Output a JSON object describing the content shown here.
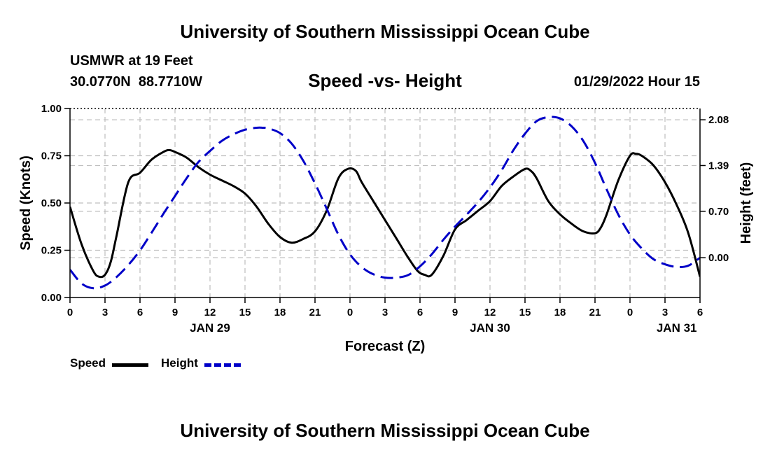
{
  "header": {
    "main_title": "University of Southern Mississippi Ocean Cube",
    "station": "USMWR at 19 Feet",
    "coords": "30.0770N  88.7710W",
    "date_hour": "01/29/2022 Hour 15",
    "footer_title": "University of Southern Mississippi Ocean Cube"
  },
  "chart_data": {
    "type": "line",
    "title": "Speed -vs- Height",
    "xlabel": "Forecast (Z)",
    "ylabel": "Speed (Knots)",
    "y2label": "Height (feet)",
    "x_range_hours": [
      0,
      54
    ],
    "x_ticks": [
      {
        "hour": 0,
        "label": "0"
      },
      {
        "hour": 3,
        "label": "3"
      },
      {
        "hour": 6,
        "label": "6"
      },
      {
        "hour": 9,
        "label": "9"
      },
      {
        "hour": 12,
        "label": "12"
      },
      {
        "hour": 15,
        "label": "15"
      },
      {
        "hour": 18,
        "label": "18"
      },
      {
        "hour": 21,
        "label": "21"
      },
      {
        "hour": 24,
        "label": "0"
      },
      {
        "hour": 27,
        "label": "3"
      },
      {
        "hour": 30,
        "label": "6"
      },
      {
        "hour": 33,
        "label": "9"
      },
      {
        "hour": 36,
        "label": "12"
      },
      {
        "hour": 39,
        "label": "15"
      },
      {
        "hour": 42,
        "label": "18"
      },
      {
        "hour": 45,
        "label": "21"
      },
      {
        "hour": 48,
        "label": "0"
      },
      {
        "hour": 51,
        "label": "3"
      },
      {
        "hour": 54,
        "label": "6"
      }
    ],
    "day_labels": [
      {
        "hour": 12,
        "label": "JAN 29"
      },
      {
        "hour": 36,
        "label": "JAN 30"
      },
      {
        "hour": 52,
        "label": "JAN 31"
      }
    ],
    "y_left": {
      "range": [
        0,
        1.0
      ],
      "ticks": [
        0.0,
        0.25,
        0.5,
        0.75,
        1.0
      ],
      "tick_labels": [
        "0.00",
        "0.25",
        "0.50",
        "0.75",
        "1.00"
      ]
    },
    "y_right": {
      "range": [
        -0.6,
        2.25
      ],
      "ticks": [
        0.0,
        0.7,
        1.39,
        2.08
      ],
      "tick_labels": [
        "0.00",
        "0.70",
        "1.39",
        "2.08"
      ]
    },
    "series": [
      {
        "name": "Speed",
        "axis": "left",
        "color": "#000000",
        "dash": "solid",
        "x": [
          0,
          1,
          2,
          2.5,
          3,
          3.5,
          4,
          5,
          6,
          7,
          8,
          8.5,
          9,
          10,
          11,
          12,
          13,
          14,
          15,
          16,
          17,
          18,
          19,
          20,
          21,
          22,
          23,
          23.8,
          24.5,
          25,
          26,
          27,
          28,
          29,
          29.8,
          30.4,
          31,
          32,
          33,
          34,
          35,
          36,
          37,
          38,
          39,
          39.5,
          40,
          41,
          42,
          43,
          44,
          45,
          45.5,
          46,
          47,
          48,
          48.5,
          49,
          50,
          51,
          52,
          53,
          54
        ],
        "y": [
          0.48,
          0.28,
          0.14,
          0.11,
          0.12,
          0.19,
          0.33,
          0.61,
          0.66,
          0.73,
          0.77,
          0.78,
          0.77,
          0.74,
          0.69,
          0.65,
          0.62,
          0.59,
          0.55,
          0.48,
          0.39,
          0.32,
          0.29,
          0.31,
          0.35,
          0.46,
          0.63,
          0.68,
          0.67,
          0.61,
          0.51,
          0.41,
          0.31,
          0.21,
          0.14,
          0.12,
          0.12,
          0.22,
          0.36,
          0.41,
          0.46,
          0.51,
          0.59,
          0.64,
          0.68,
          0.67,
          0.63,
          0.51,
          0.44,
          0.39,
          0.35,
          0.34,
          0.37,
          0.44,
          0.62,
          0.75,
          0.76,
          0.75,
          0.7,
          0.61,
          0.49,
          0.34,
          0.11
        ]
      },
      {
        "name": "Height",
        "axis": "right",
        "color": "#0000c8",
        "dash": "dashed",
        "x": [
          0,
          1,
          2,
          3,
          4,
          5,
          6,
          7,
          8,
          9,
          10,
          11,
          12,
          13,
          14,
          15,
          16,
          16.5,
          17,
          18,
          19,
          20,
          21,
          22,
          23,
          24,
          25,
          26,
          27,
          28,
          29,
          30,
          31,
          32,
          33,
          34,
          35,
          36,
          37,
          38,
          39,
          40,
          41,
          42,
          43,
          44,
          45,
          46,
          47,
          48,
          49,
          50,
          51,
          52,
          53,
          54
        ],
        "y": [
          -0.18,
          -0.39,
          -0.46,
          -0.42,
          -0.29,
          -0.11,
          0.11,
          0.38,
          0.66,
          0.93,
          1.2,
          1.44,
          1.61,
          1.76,
          1.86,
          1.93,
          1.96,
          1.96,
          1.95,
          1.88,
          1.72,
          1.46,
          1.12,
          0.74,
          0.35,
          0.05,
          -0.14,
          -0.25,
          -0.3,
          -0.3,
          -0.26,
          -0.13,
          0.05,
          0.27,
          0.47,
          0.65,
          0.84,
          1.06,
          1.32,
          1.62,
          1.87,
          2.06,
          2.12,
          2.1,
          1.98,
          1.76,
          1.43,
          1.03,
          0.65,
          0.35,
          0.14,
          -0.02,
          -0.1,
          -0.14,
          -0.12,
          0.0
        ]
      }
    ],
    "legend": [
      {
        "name": "Speed",
        "color": "#000000",
        "dash": "solid"
      },
      {
        "name": "Height",
        "color": "#0000c8",
        "dash": "dashed"
      }
    ],
    "legend_position": "bottom-left",
    "grid": true
  }
}
